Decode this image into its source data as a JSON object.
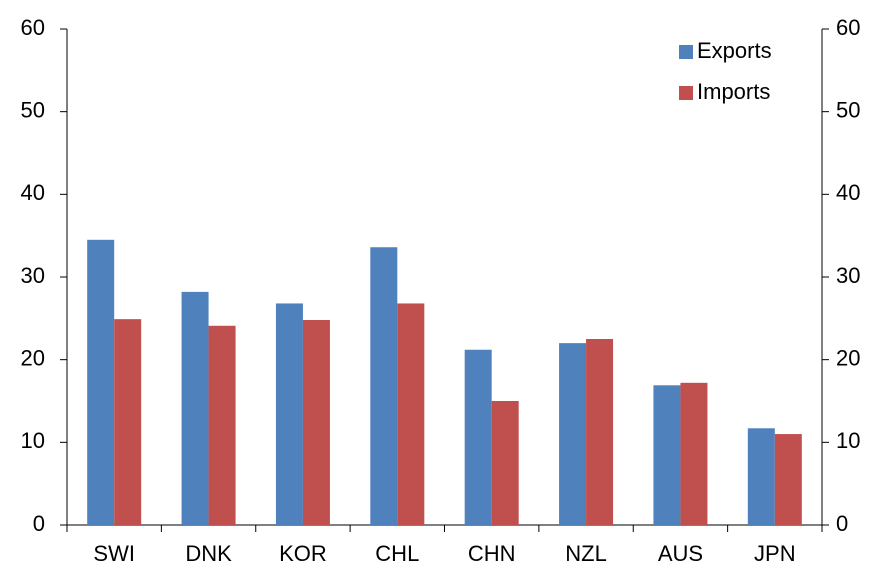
{
  "chart_data": {
    "type": "bar",
    "categories": [
      "SWI",
      "DNK",
      "KOR",
      "CHL",
      "CHN",
      "NZL",
      "AUS",
      "JPN"
    ],
    "series": [
      {
        "name": "Exports",
        "color": "#4f81bd",
        "values": [
          34.5,
          28.2,
          26.8,
          33.6,
          21.2,
          22.0,
          16.9,
          11.7
        ]
      },
      {
        "name": "Imports",
        "color": "#c0504d",
        "values": [
          24.9,
          24.1,
          24.8,
          26.8,
          15.0,
          22.5,
          17.2,
          11.0
        ]
      }
    ],
    "ylim": [
      0,
      60
    ],
    "yticks": [
      0,
      10,
      20,
      30,
      40,
      50,
      60
    ],
    "y2lim": [
      0,
      60
    ],
    "y2ticks": [
      0,
      10,
      20,
      30,
      40,
      50,
      60
    ],
    "grid": false,
    "legend": "top-right"
  }
}
